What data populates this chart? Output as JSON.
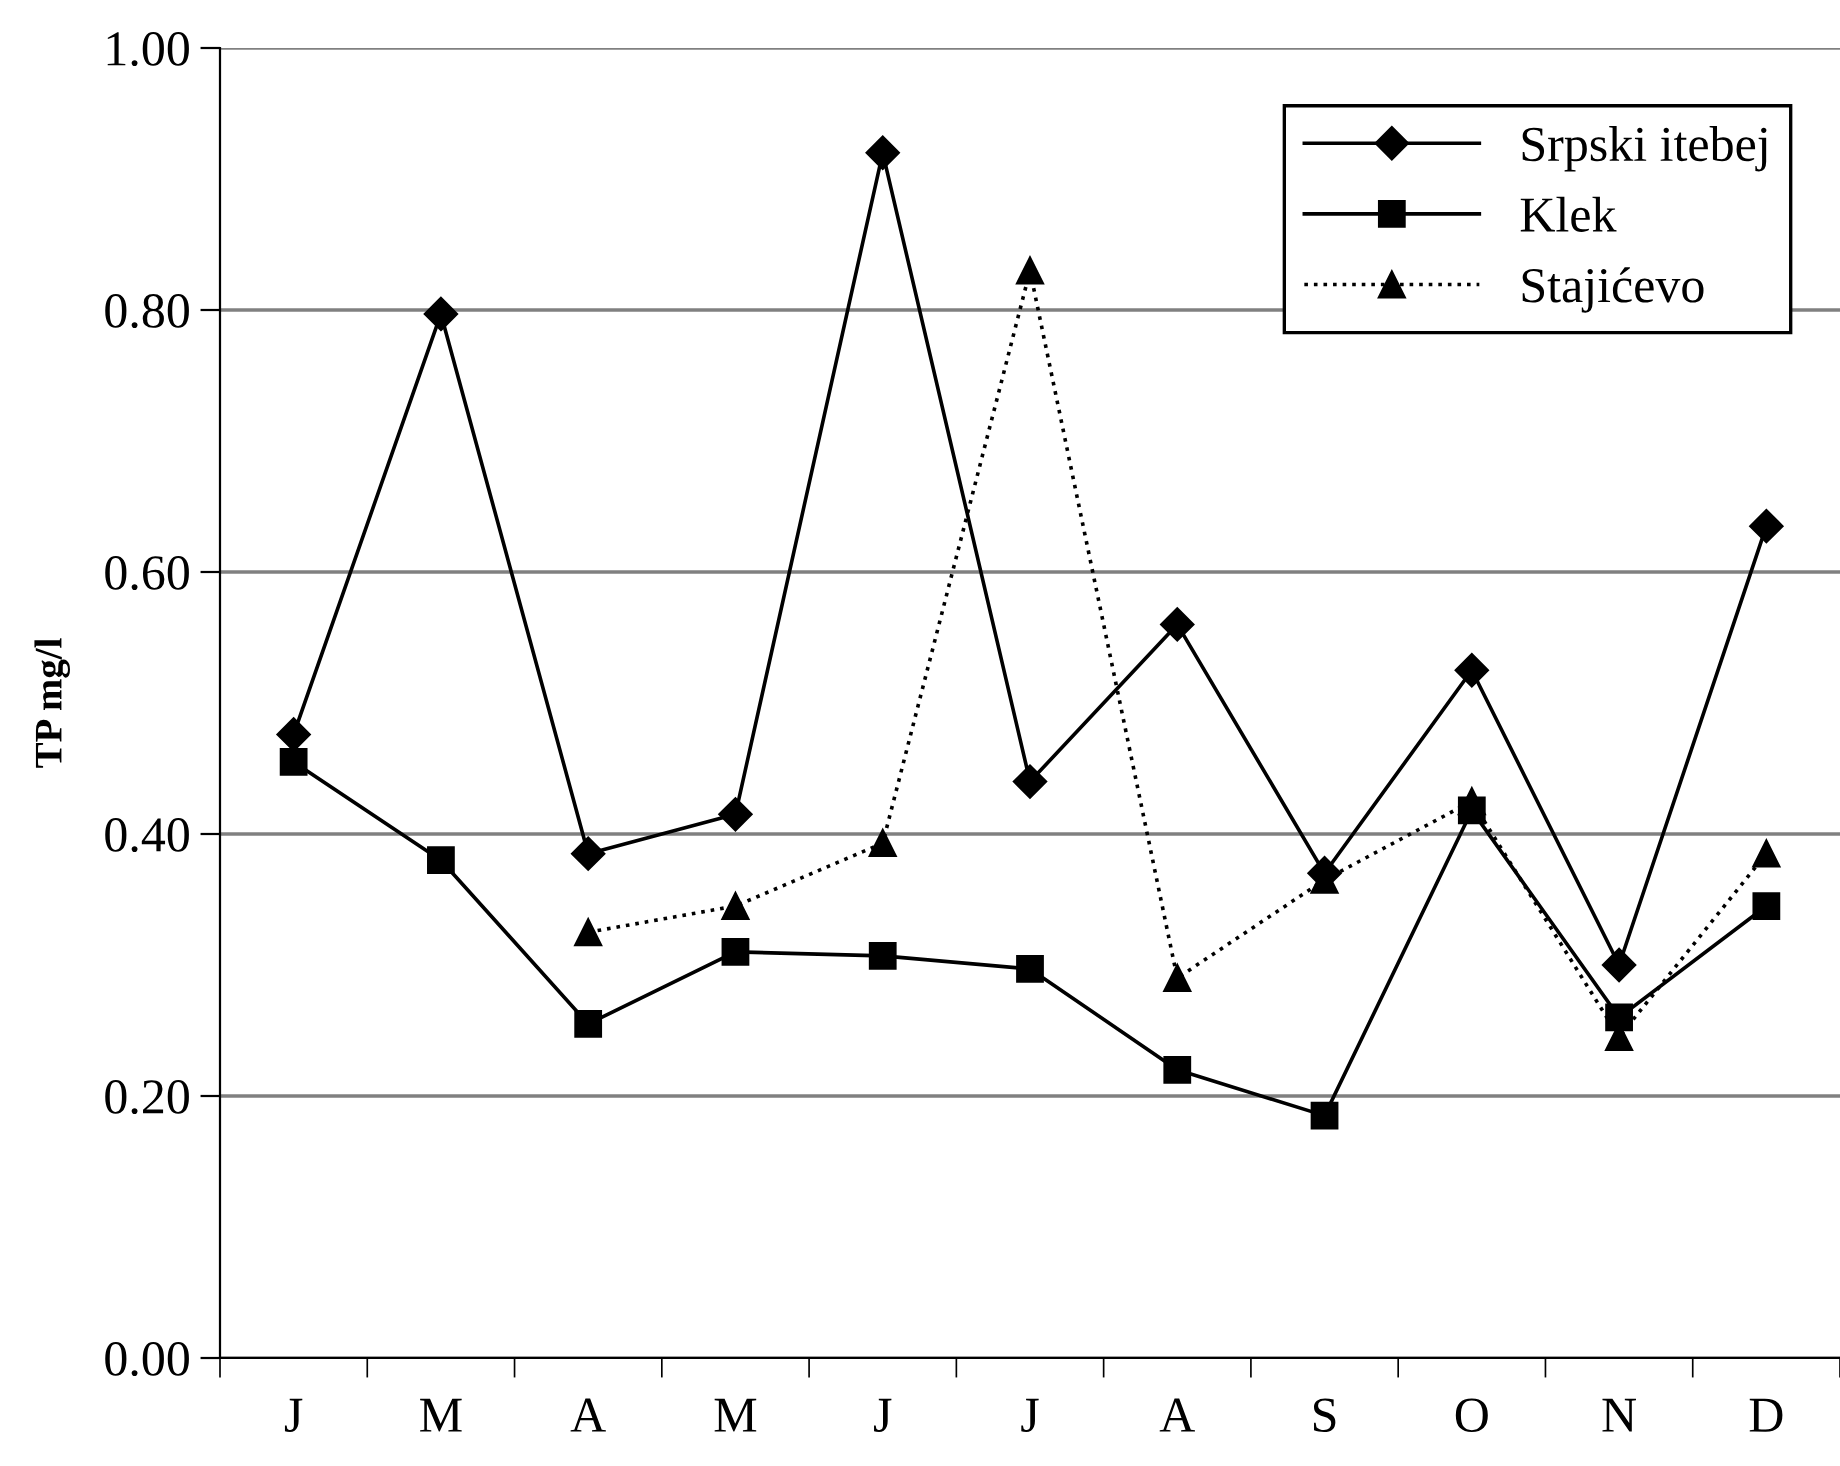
{
  "chart_data": {
    "type": "line",
    "ylabel": "TP mg/l",
    "categories": [
      "J",
      "M",
      "A",
      "M",
      "J",
      "J",
      "A",
      "S",
      "O",
      "N",
      "D"
    ],
    "series": [
      {
        "name": "Srpski itebej",
        "color": "#000000",
        "marker": "diamond",
        "line_style": "solid",
        "values": [
          0.476,
          0.797,
          0.385,
          0.415,
          0.92,
          0.44,
          0.56,
          0.37,
          0.525,
          0.3,
          0.635
        ]
      },
      {
        "name": "Klek",
        "color": "#000000",
        "marker": "square",
        "line_style": "solid",
        "values": [
          0.455,
          0.38,
          0.255,
          0.31,
          0.307,
          0.297,
          0.22,
          0.185,
          0.418,
          0.26,
          0.345
        ]
      },
      {
        "name": "Stajićevo",
        "color": "#000000",
        "marker": "triangle",
        "line_style": "dotted",
        "values": [
          null,
          null,
          0.325,
          0.345,
          0.393,
          0.83,
          0.29,
          0.365,
          0.425,
          0.245,
          0.385
        ]
      }
    ],
    "ylim": [
      0,
      1
    ],
    "yticks": [
      {
        "value": 0,
        "label": "0.00"
      },
      {
        "value": 0.2,
        "label": "0.20"
      },
      {
        "value": 0.4,
        "label": "0.40"
      },
      {
        "value": 0.6,
        "label": "0.60"
      },
      {
        "value": 0.8,
        "label": "0.80"
      },
      {
        "value": 1.0,
        "label": "1.00"
      }
    ],
    "grid": "y",
    "legend": "top right"
  }
}
